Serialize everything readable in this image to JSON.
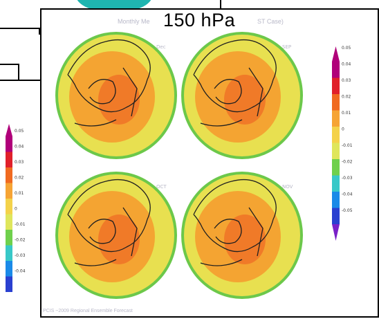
{
  "level_title": "150 hPa",
  "faint_header": "Monthly Me",
  "faint_header_right": "ST Case)",
  "panel_labels": [
    "Dec",
    "SEP",
    "OCT",
    "NOV"
  ],
  "footer_text": "PCIS ~2009 Regional Ensemble Forecast",
  "colorbar_right": {
    "labels": [
      "0.05",
      "0.04",
      "0.03",
      "0.02",
      "0.01",
      "0",
      "-0.01",
      "-0.02",
      "-0.03",
      "-0.04",
      "-0.05"
    ],
    "colors": [
      "#b0007a",
      "#e0202a",
      "#f06a20",
      "#f6a434",
      "#f4d24a",
      "#dfe65c",
      "#6fd04c",
      "#38c8c8",
      "#1a8ae8",
      "#2a40d0",
      "#7a20c8"
    ]
  },
  "colorbar_left": {
    "labels": [
      "0.05",
      "0.04",
      "0.03",
      "0.02",
      "0.01",
      "0",
      "-0.01",
      "-0.02",
      "-0.03",
      "-0.04"
    ],
    "colors": [
      "#b0007a",
      "#e0202a",
      "#f06a20",
      "#f6a434",
      "#f4d24a",
      "#dfe65c",
      "#6fd04c",
      "#38c8c8",
      "#1a8ae8",
      "#2a40d0"
    ]
  }
}
